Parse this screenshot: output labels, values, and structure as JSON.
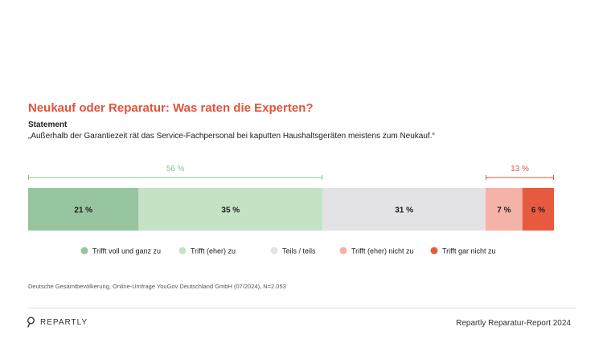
{
  "title": "Neukauf oder Reparatur: Was raten die Experten?",
  "statement_label": "Statement",
  "statement_text": "„Außerhalb der Garantiezeit rät das Service-Fachpersonal bei kaputten Haushaltsgeräten meistens zum Neukauf.“",
  "chart_data": {
    "type": "bar",
    "orientation": "horizontal-stacked-100",
    "categories": [
      "Statement"
    ],
    "series": [
      {
        "name": "Trifft voll und ganz zu",
        "values": [
          21
        ],
        "label": "21 %",
        "color": "#97c59f",
        "label_color": "#222222"
      },
      {
        "name": "Trifft (eher) zu",
        "values": [
          35
        ],
        "label": "35 %",
        "color": "#c3e2c6",
        "label_color": "#222222"
      },
      {
        "name": "Teils / teils",
        "values": [
          31
        ],
        "label": "31 %",
        "color": "#e3e3e6",
        "label_color": "#222222"
      },
      {
        "name": "Trifft (eher) nicht zu",
        "values": [
          7
        ],
        "label": "7 %",
        "color": "#f4b3a6",
        "label_color": "#222222"
      },
      {
        "name": "Trifft gar nicht zu",
        "values": [
          6
        ],
        "label": "6 %",
        "color": "#e85a40",
        "label_color": "#222222"
      }
    ],
    "brackets": [
      {
        "label": "56 %",
        "series_from": 0,
        "series_to": 1,
        "color": "#8fbf95"
      },
      {
        "label": "13 %",
        "series_from": 3,
        "series_to": 4,
        "color": "#e0533c"
      }
    ],
    "total": 100,
    "legend_position": "bottom"
  },
  "source": "Deutsche Gesamtbevölkerung, Online-Umfrage YouGov Deutschland GmbH (07/2024), N=2.053",
  "brand": "REPARTLY",
  "footer_right": "Repartly Reparatur-Report 2024"
}
